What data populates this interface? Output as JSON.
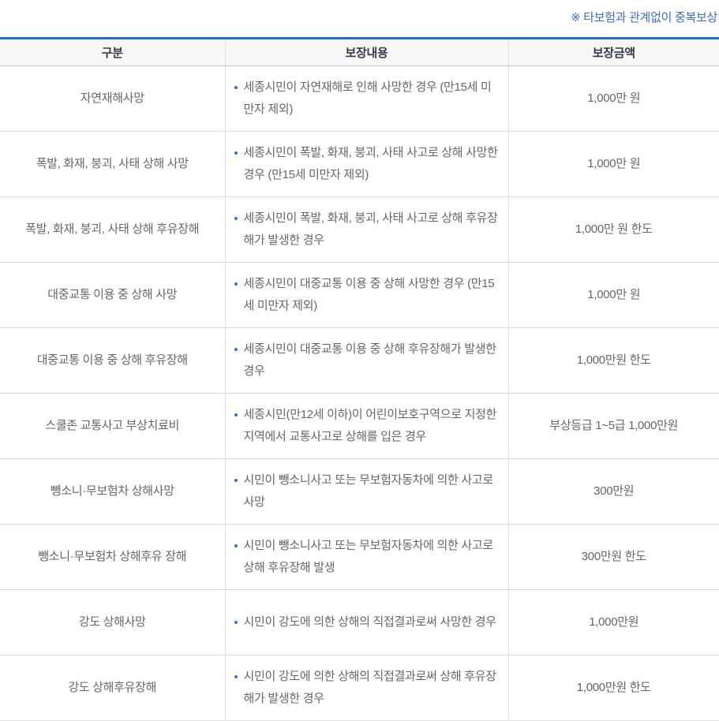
{
  "note": {
    "text": "※ 타보험과 관계없이 중복보상"
  },
  "colors": {
    "table_top_border_blue": "#2170c0",
    "note_blue": "#3e6bd0",
    "bullet_blue": "#3e6bd0",
    "header_background": "#f8f8f8",
    "body_text_gray": "#666666"
  },
  "icons": {
    "bullet": "dot-icon"
  },
  "table": {
    "headers": [
      "구분",
      "보장내용",
      "보장금액"
    ],
    "rows": [
      {
        "category": "자연재해사망",
        "detail": "세종시민이 자연재해로 인해 사망한 경우 (만15세 미만자 제외)",
        "amount": "1,000만 원"
      },
      {
        "category": "폭발, 화재, 붕괴, 사태 상해 사망",
        "detail": "세종시민이 폭발, 화재, 붕괴, 사태 사고로 상해 사망한 경우 (만15세 미만자 제외)",
        "amount": "1,000만 원"
      },
      {
        "category": "폭발, 화재, 붕괴, 사태 상해 후유장해",
        "detail": "세종시민이 폭발, 화재, 붕괴, 사태 사고로 상해 후유장해가 발생한 경우",
        "amount": "1,000만 원 한도"
      },
      {
        "category": "대중교통 이용 중 상해 사망",
        "detail": "세종시민이 대중교통 이용 중 상해 사망한 경우 (만15세 미만자 제외)",
        "amount": "1,000만 원"
      },
      {
        "category": "대중교통 이용 중 상해 후유장해",
        "detail": "세종시민이 대중교통 이용 중 상해 후유장해가 발생한 경우",
        "amount": "1,000만원 한도"
      },
      {
        "category": "스쿨존 교통사고 부상치료비",
        "detail": "세종시민(만12세 이하)이 어린이보호구역으로 지정한 지역에서 교통사고로 상해를 입은 경우",
        "amount": "부상등급 1~5급 1,000만원"
      },
      {
        "category": "뺑소니·무보험차 상해사망",
        "detail": "시민이 뺑소니사고 또는 무보험자동차에 의한 사고로 사망",
        "amount": "300만원"
      },
      {
        "category": "뺑소니·무보험차 상해후유 장해",
        "detail": "시민이 뺑소니사고 또는 무보험자동차에 의한 사고로 상해 후유장해 발생",
        "amount": "300만원 한도"
      },
      {
        "category": "강도 상해사망",
        "detail": "시민이 강도에 의한 상해의 직접결과로써 사망한 경우",
        "amount": "1,000만원"
      },
      {
        "category": "강도 상해후유장해",
        "detail": "시민이 강도에 의한 상해의 직접결과로써 상해 후유장해가 발생한 경우",
        "amount": "1,000만원 한도"
      }
    ]
  }
}
